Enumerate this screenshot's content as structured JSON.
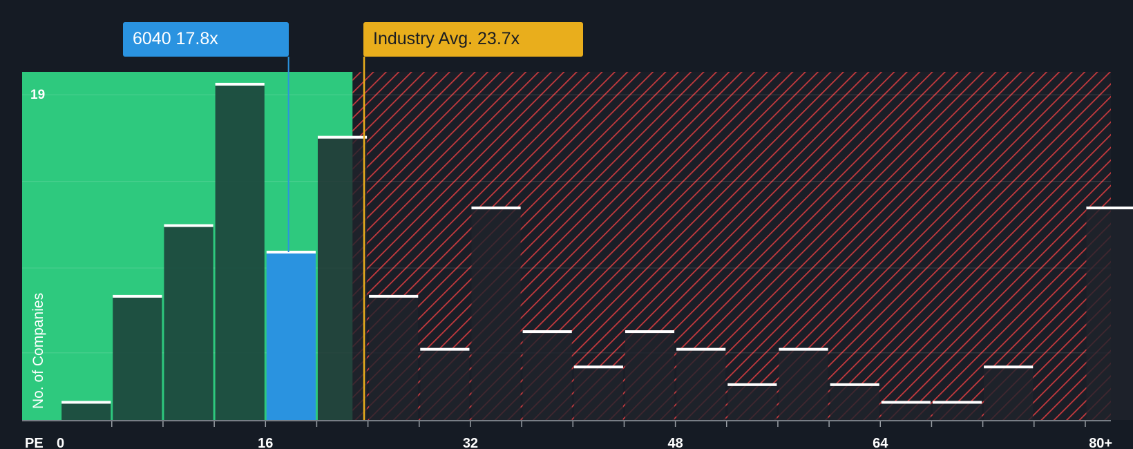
{
  "chart_data": {
    "type": "bar",
    "title": "",
    "xlabel": "PE",
    "ylabel": "No. of Companies",
    "x_ticks": [
      "0",
      "16",
      "32",
      "48",
      "64",
      "80+"
    ],
    "y_ticks": [
      "19"
    ],
    "bins": [
      {
        "x0": 0,
        "x1": 4,
        "value": 1
      },
      {
        "x0": 4,
        "x1": 8,
        "value": 7
      },
      {
        "x0": 8,
        "x1": 12,
        "value": 11
      },
      {
        "x0": 12,
        "x1": 16,
        "value": 19
      },
      {
        "x0": 16,
        "x1": 20,
        "value": 9.5,
        "highlight": true
      },
      {
        "x0": 20,
        "x1": 24,
        "value": 16
      },
      {
        "x0": 24,
        "x1": 28,
        "value": 7
      },
      {
        "x0": 28,
        "x1": 32,
        "value": 4
      },
      {
        "x0": 32,
        "x1": 36,
        "value": 12
      },
      {
        "x0": 36,
        "x1": 40,
        "value": 5
      },
      {
        "x0": 40,
        "x1": 44,
        "value": 3
      },
      {
        "x0": 44,
        "x1": 48,
        "value": 5
      },
      {
        "x0": 48,
        "x1": 52,
        "value": 4
      },
      {
        "x0": 52,
        "x1": 56,
        "value": 2
      },
      {
        "x0": 56,
        "x1": 60,
        "value": 4
      },
      {
        "x0": 60,
        "x1": 64,
        "value": 2
      },
      {
        "x0": 64,
        "x1": 68,
        "value": 1
      },
      {
        "x0": 68,
        "x1": 72,
        "value": 1
      },
      {
        "x0": 72,
        "x1": 76,
        "value": 3
      },
      {
        "x0": 76,
        "x1": 80,
        "value": 0
      },
      {
        "x0": 80,
        "x1": 84,
        "value": 12
      }
    ],
    "xlim": [
      -3,
      82
    ],
    "ylim": [
      0,
      19.7
    ],
    "fair_zone_end": 22.8,
    "company": {
      "label": "6040 17.8x",
      "pe": 17.8
    },
    "industry": {
      "label": "Industry Avg. 23.7x",
      "pe": 23.7
    },
    "colors": {
      "background": "#151b24",
      "fair": "#2ec97e",
      "overvalued": "#c83a3e",
      "bar_dark": "#1e4a3e",
      "bar_dark_red_zone": "#1f232c",
      "company": "#2a93e0",
      "industry": "#e9ae1c",
      "label_text": "#ffffff"
    }
  }
}
